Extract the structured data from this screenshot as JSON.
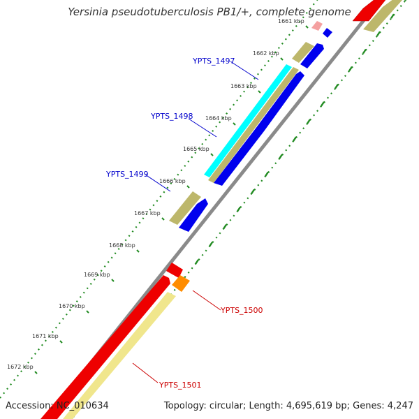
{
  "title": "Yersinia pseudotuberculosis PB1/+, complete genome",
  "footer": {
    "accession": "Accession: NC_010634",
    "summary": "Topology: circular; Length: 4,695,619 bp; Genes: 4,247"
  },
  "ruler": [
    {
      "label": "1661 kbp"
    },
    {
      "label": "1662 kbp"
    },
    {
      "label": "1663 kbp"
    },
    {
      "label": "1664 kbp"
    },
    {
      "label": "1665 kbp"
    },
    {
      "label": "1666 kbp"
    },
    {
      "label": "1667 kbp"
    },
    {
      "label": "1668 kbp"
    },
    {
      "label": "1669 kbp"
    },
    {
      "label": "1670 kbp"
    },
    {
      "label": "1671 kbp"
    },
    {
      "label": "1672 kbp"
    }
  ],
  "gene_labels": [
    {
      "name": "YPTS_1497",
      "color": "#0000cc"
    },
    {
      "name": "YPTS_1498",
      "color": "#0000cc"
    },
    {
      "name": "YPTS_1499",
      "color": "#0000cc"
    },
    {
      "name": "YPTS_1500",
      "color": "#cc0000"
    },
    {
      "name": "YPTS_1501",
      "color": "#cc0000"
    }
  ],
  "colors": {
    "backbone": "#666666",
    "tick_green": "#228b22",
    "cds_blue": "#0000ee",
    "feature_cyan": "#00ffff",
    "feature_khaki": "#bdb76b",
    "cds_red": "#ff0000",
    "feature_pale": "#f0e68c",
    "cds_orange": "#ff8c00",
    "cds_pink": "#f08080"
  }
}
